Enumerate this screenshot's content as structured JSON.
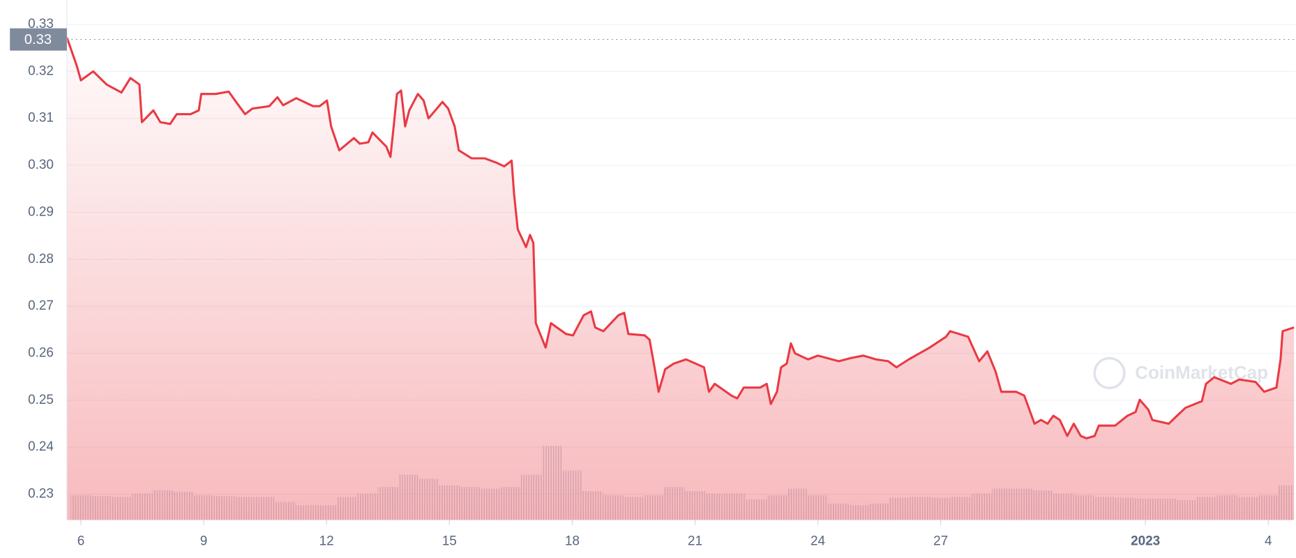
{
  "chart_data": {
    "type": "line",
    "x": [
      5.66,
      5.9,
      6.0,
      6.3,
      6.63,
      6.99,
      7.21,
      7.43,
      7.49,
      7.77,
      7.94,
      8.18,
      8.34,
      8.68,
      8.88,
      8.94,
      9.29,
      9.61,
      9.79,
      10.01,
      10.19,
      10.6,
      10.8,
      10.94,
      11.26,
      11.67,
      11.83,
      12.01,
      12.11,
      12.31,
      12.67,
      12.81,
      13.02,
      13.12,
      13.46,
      13.56,
      13.64,
      13.72,
      13.82,
      13.92,
      14.02,
      14.23,
      14.37,
      14.49,
      14.83,
      14.97,
      15.13,
      15.23,
      15.54,
      15.86,
      16.14,
      16.34,
      16.52,
      16.58,
      16.67,
      16.87,
      16.97,
      17.05,
      17.11,
      17.35,
      17.48,
      17.85,
      18.02,
      18.28,
      18.46,
      18.56,
      18.76,
      19.13,
      19.27,
      19.37,
      19.77,
      19.89,
      20.01,
      20.11,
      20.27,
      20.48,
      20.78,
      21.22,
      21.34,
      21.48,
      21.89,
      22.03,
      22.19,
      22.59,
      22.75,
      22.85,
      23.0,
      23.1,
      23.24,
      23.34,
      23.44,
      23.76,
      24.0,
      24.51,
      24.81,
      25.11,
      25.42,
      25.72,
      25.92,
      26.22,
      26.73,
      27.13,
      27.23,
      27.67,
      27.83,
      27.94,
      28.14,
      28.34,
      28.48,
      28.84,
      29.04,
      29.15,
      29.29,
      29.45,
      29.61,
      29.75,
      29.91,
      30.09,
      30.25,
      30.42,
      30.56,
      30.76,
      30.86,
      31.26,
      31.56,
      31.76,
      31.86,
      32.07,
      32.17,
      32.57,
      32.77,
      32.98,
      33.38,
      33.48,
      33.68,
      34.09,
      34.29,
      34.69,
      34.9,
      35.2,
      35.3,
      35.35,
      35.63
    ],
    "series": [
      {
        "color": "#ea3943",
        "values": [
          0.3272,
          0.3212,
          0.3181,
          0.32,
          0.3172,
          0.3155,
          0.3186,
          0.3172,
          0.3092,
          0.3117,
          0.3092,
          0.3088,
          0.3109,
          0.3109,
          0.3117,
          0.3152,
          0.3152,
          0.3157,
          0.3135,
          0.3109,
          0.3121,
          0.3126,
          0.3145,
          0.3128,
          0.3143,
          0.3126,
          0.3126,
          0.3138,
          0.3083,
          0.3032,
          0.3058,
          0.3046,
          0.3049,
          0.307,
          0.304,
          0.3018,
          0.3083,
          0.3152,
          0.3159,
          0.3083,
          0.3117,
          0.3152,
          0.3138,
          0.31,
          0.3135,
          0.3121,
          0.3083,
          0.3032,
          0.3015,
          0.3015,
          0.3006,
          0.2998,
          0.301,
          0.2938,
          0.2864,
          0.2826,
          0.2852,
          0.2835,
          0.2664,
          0.2612,
          0.2664,
          0.2641,
          0.2638,
          0.2681,
          0.2689,
          0.2655,
          0.2647,
          0.2681,
          0.2686,
          0.2641,
          0.2638,
          0.2629,
          0.257,
          0.2518,
          0.2566,
          0.2578,
          0.2587,
          0.257,
          0.2518,
          0.2535,
          0.251,
          0.2504,
          0.2527,
          0.2527,
          0.2535,
          0.2492,
          0.2518,
          0.257,
          0.2578,
          0.2621,
          0.26,
          0.2587,
          0.2595,
          0.2583,
          0.259,
          0.2595,
          0.2587,
          0.2583,
          0.257,
          0.2587,
          0.2612,
          0.2635,
          0.2647,
          0.2635,
          0.2604,
          0.2583,
          0.2604,
          0.2561,
          0.2518,
          0.2518,
          0.251,
          0.2484,
          0.245,
          0.2458,
          0.245,
          0.2467,
          0.2458,
          0.2424,
          0.245,
          0.2424,
          0.2419,
          0.2424,
          0.2446,
          0.2446,
          0.2467,
          0.2475,
          0.2501,
          0.248,
          0.2458,
          0.245,
          0.2467,
          0.2484,
          0.2498,
          0.2535,
          0.2549,
          0.2535,
          0.2544,
          0.2539,
          0.2518,
          0.2527,
          0.2587,
          0.2647,
          0.2655
        ]
      }
    ],
    "area": true,
    "xlim": [
      5.66,
      35.65
    ],
    "ylim": [
      0.2245,
      0.3352
    ],
    "xticks": [
      6,
      9,
      12,
      15,
      18,
      21,
      24,
      27,
      {
        "value": 32,
        "label": "2023"
      },
      {
        "value": 35,
        "label": "4"
      }
    ],
    "yticks": [
      0.23,
      0.24,
      0.25,
      0.26,
      0.27,
      0.28,
      0.29,
      {
        "value": 0.3,
        "label": "0.30"
      },
      0.31,
      0.32,
      0.33
    ],
    "grid": true,
    "reference_line": {
      "value": 0.3268,
      "label": "0.33"
    },
    "volume": {
      "color": "#cfd6e4",
      "y2lim": [
        0,
        100
      ],
      "x": [
        6,
        6.5,
        7,
        7.5,
        8,
        8.5,
        9,
        9.5,
        10,
        10.5,
        11,
        11.5,
        12,
        12.5,
        13,
        13.5,
        14,
        14.5,
        15,
        15.5,
        16,
        16.5,
        17,
        17.5,
        18,
        18.5,
        19,
        19.5,
        20,
        20.5,
        21,
        21.5,
        22,
        22.5,
        23,
        23.5,
        24,
        24.5,
        25,
        25.5,
        26,
        26.5,
        27,
        27.5,
        28,
        28.5,
        29,
        29.5,
        30,
        30.5,
        31,
        31.5,
        32,
        32.5,
        33,
        33.5,
        34,
        34.5,
        35,
        35.5
      ],
      "values": [
        30,
        29,
        28,
        32,
        36,
        34,
        30,
        29,
        28,
        28,
        22,
        18,
        18,
        28,
        32,
        40,
        55,
        50,
        42,
        40,
        38,
        40,
        55,
        90,
        60,
        35,
        30,
        28,
        30,
        40,
        35,
        32,
        32,
        25,
        30,
        38,
        30,
        20,
        18,
        20,
        27,
        28,
        27,
        28,
        32,
        38,
        38,
        36,
        32,
        30,
        28,
        27,
        26,
        26,
        24,
        28,
        30,
        28,
        30,
        42
      ]
    },
    "watermark": "CoinMarketCap"
  }
}
